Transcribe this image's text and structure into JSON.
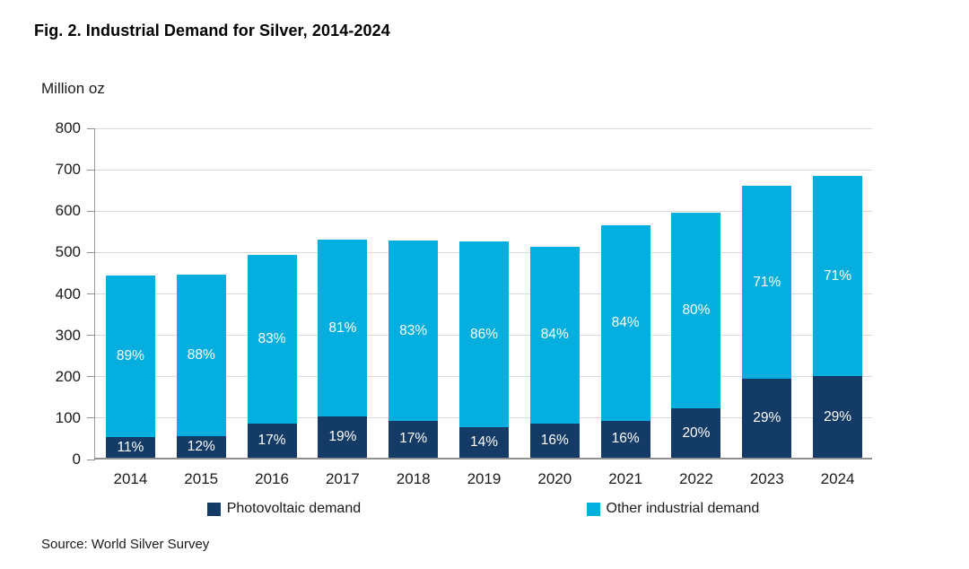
{
  "title": "Fig. 2. Industrial Demand for Silver, 2014-2024",
  "source": "Source: World Silver Survey",
  "chart_data": {
    "type": "bar",
    "stacked": true,
    "title": "Fig. 2. Industrial Demand for Silver, 2014-2024",
    "unit_label": "Million oz",
    "categories": [
      "2014",
      "2015",
      "2016",
      "2017",
      "2018",
      "2019",
      "2020",
      "2021",
      "2022",
      "2023",
      "2024"
    ],
    "series": [
      {
        "name": "Photovoltaic demand",
        "color": "#143a66",
        "values": [
          49,
          53,
          83,
          100,
          89,
          73,
          82,
          90,
          119,
          190,
          197
        ],
        "labels": [
          "11%",
          "12%",
          "17%",
          "19%",
          "17%",
          "14%",
          "16%",
          "16%",
          "20%",
          "29%",
          "29%"
        ]
      },
      {
        "name": "Other industrial demand",
        "color": "#04afdf",
        "values": [
          392,
          390,
          406,
          426,
          435,
          450,
          428,
          472,
          474,
          467,
          483
        ],
        "labels": [
          "89%",
          "88%",
          "83%",
          "81%",
          "83%",
          "86%",
          "84%",
          "84%",
          "80%",
          "71%",
          "71%"
        ]
      }
    ],
    "totals": [
      441,
      443,
      489,
      526,
      524,
      523,
      510,
      562,
      593,
      657,
      680
    ],
    "ylim": [
      0,
      800
    ],
    "ytick_interval": 100,
    "ylabel": "Million oz",
    "xlabel": "",
    "grid": true,
    "legend_position": "bottom",
    "source": "Source: World Silver Survey",
    "colors": {
      "grid": "#d9d9d9",
      "axis": "#8f8f8f",
      "label_text": "#ffffff"
    }
  }
}
